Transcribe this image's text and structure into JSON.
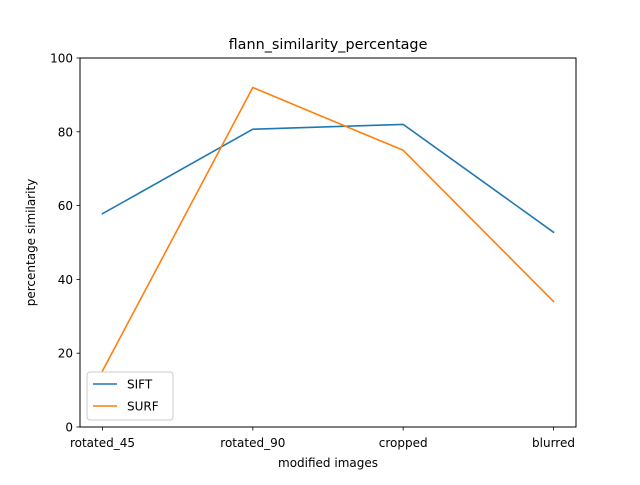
{
  "chart_data": {
    "type": "line",
    "title": "flann_similarity_percentage",
    "xlabel": "modified images",
    "ylabel": "percentage similarity",
    "categories": [
      "rotated_45",
      "rotated_90",
      "cropped",
      "blurred"
    ],
    "ylim": [
      0,
      100
    ],
    "yticks": [
      0,
      20,
      40,
      60,
      80,
      100
    ],
    "grid": false,
    "legend_position": "lower-left",
    "series": [
      {
        "name": "SIFT",
        "color": "#1f77b4",
        "values": [
          57.8,
          80.7,
          82.0,
          52.8
        ]
      },
      {
        "name": "SURF",
        "color": "#ff7f0e",
        "values": [
          15.2,
          92.0,
          75.0,
          34.0
        ]
      }
    ]
  }
}
